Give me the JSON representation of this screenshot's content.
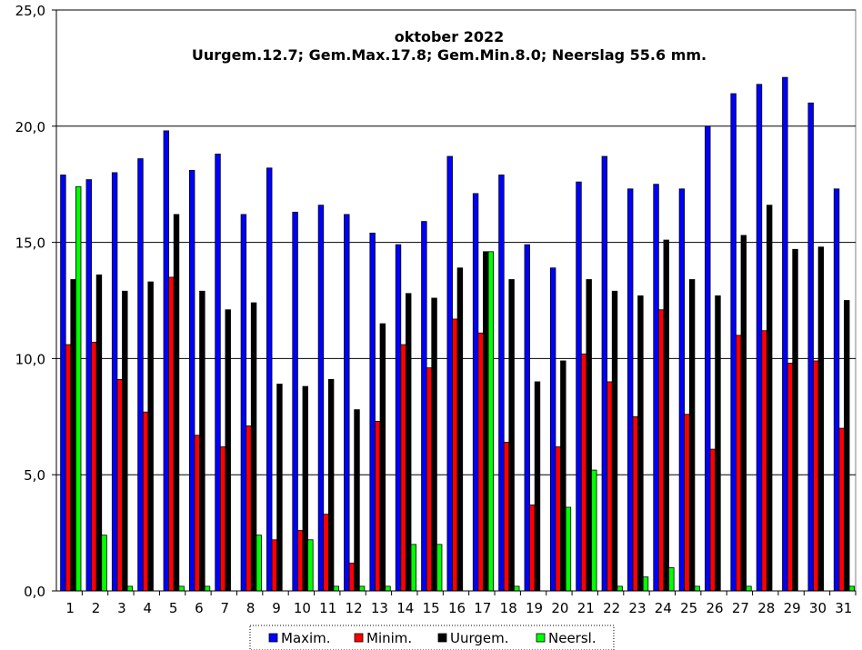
{
  "chart_data": {
    "type": "bar",
    "title": "oktober 2022",
    "subtitle": "Uurgem.12.7; Gem.Max.17.8;  Gem.Min.8.0;  Neerslag 55.6 mm.",
    "xlabel": "",
    "ylabel": "",
    "ylim": [
      0,
      25
    ],
    "yticks": [
      "0,0",
      "5,0",
      "10,0",
      "15,0",
      "20,0",
      "25,0"
    ],
    "grid": true,
    "legend_position": "bottom",
    "categories": [
      "1",
      "2",
      "3",
      "4",
      "5",
      "6",
      "7",
      "8",
      "9",
      "10",
      "11",
      "12",
      "13",
      "14",
      "15",
      "16",
      "17",
      "18",
      "19",
      "20",
      "21",
      "22",
      "23",
      "24",
      "25",
      "26",
      "27",
      "28",
      "29",
      "30",
      "31"
    ],
    "series": [
      {
        "name": "Maxim.",
        "color": "#0000ff",
        "values": [
          17.9,
          17.7,
          18.0,
          18.6,
          19.8,
          18.1,
          18.8,
          16.2,
          18.2,
          16.3,
          16.6,
          16.2,
          15.4,
          14.9,
          15.9,
          18.7,
          17.1,
          17.9,
          14.9,
          13.9,
          17.6,
          18.7,
          17.3,
          17.5,
          17.3,
          20.0,
          21.4,
          21.8,
          22.1,
          21.0,
          17.3
        ]
      },
      {
        "name": "Minim.",
        "color": "#ff0000",
        "values": [
          10.6,
          10.7,
          9.1,
          7.7,
          13.5,
          6.7,
          6.2,
          7.1,
          2.2,
          2.6,
          3.3,
          1.2,
          7.3,
          10.6,
          9.6,
          11.7,
          11.1,
          6.4,
          3.7,
          6.2,
          10.2,
          9.0,
          7.5,
          12.1,
          7.6,
          6.1,
          11.0,
          11.2,
          9.8,
          9.9,
          7.0
        ]
      },
      {
        "name": "Uurgem.",
        "color": "#000000",
        "values": [
          13.4,
          13.6,
          12.9,
          13.3,
          16.2,
          12.9,
          12.1,
          12.4,
          8.9,
          8.8,
          9.1,
          7.8,
          11.5,
          12.8,
          12.6,
          13.9,
          14.6,
          13.4,
          9.0,
          9.9,
          13.4,
          12.9,
          12.7,
          15.1,
          13.4,
          12.7,
          15.3,
          16.6,
          14.7,
          14.8,
          12.5
        ]
      },
      {
        "name": "Neersl.",
        "color": "#00ff00",
        "values": [
          17.4,
          2.4,
          0.2,
          0.0,
          0.2,
          0.2,
          0.0,
          2.4,
          0.0,
          2.2,
          0.2,
          0.2,
          0.2,
          2.0,
          2.0,
          0.0,
          14.6,
          0.2,
          0.0,
          3.6,
          5.2,
          0.2,
          0.6,
          1.0,
          0.2,
          0.0,
          0.2,
          0.0,
          0.0,
          0.0,
          0.2
        ]
      }
    ]
  }
}
